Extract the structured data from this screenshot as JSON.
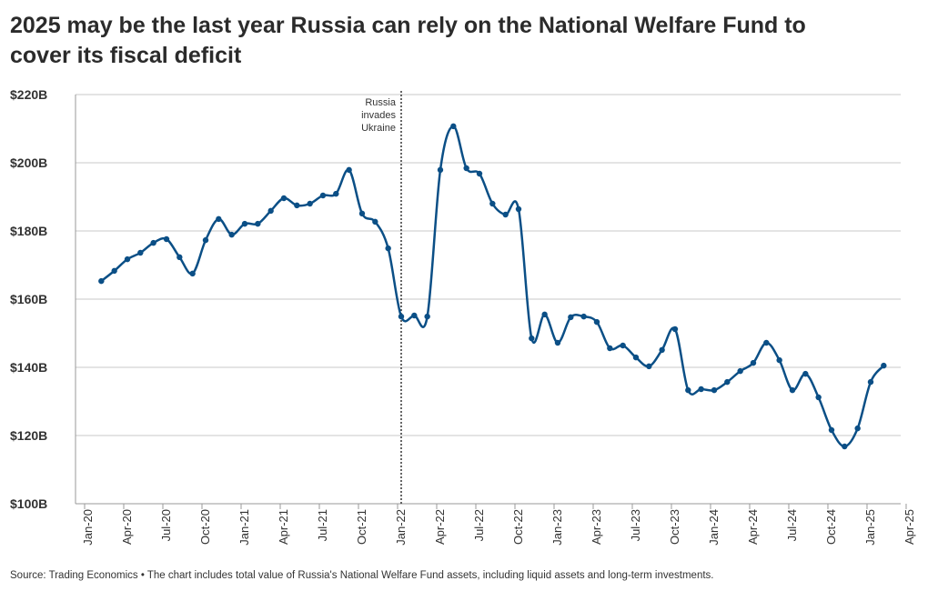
{
  "chart_data": {
    "type": "line",
    "title": [
      "2025 may be the last year Russia can rely on the National Welfare Fund to",
      "cover its fiscal deficit"
    ],
    "x": [
      "Feb-20",
      "Mar-20",
      "Apr-20",
      "May-20",
      "Jun-20",
      "Jul-20",
      "Aug-20",
      "Sep-20",
      "Oct-20",
      "Nov-20",
      "Dec-20",
      "Jan-21",
      "Feb-21",
      "Mar-21",
      "Apr-21",
      "May-21",
      "Jun-21",
      "Jul-21",
      "Aug-21",
      "Sep-21",
      "Oct-21",
      "Nov-21",
      "Dec-21",
      "Jan-22",
      "Feb-22",
      "Mar-22",
      "Apr-22",
      "May-22",
      "Jun-22",
      "Jul-22",
      "Aug-22",
      "Sep-22",
      "Oct-22",
      "Nov-22",
      "Dec-22",
      "Jan-23",
      "Feb-23",
      "Mar-23",
      "Apr-23",
      "May-23",
      "Jun-23",
      "Jul-23",
      "Aug-23",
      "Sep-23",
      "Oct-23",
      "Nov-23",
      "Dec-23",
      "Jan-24",
      "Feb-24",
      "Mar-24",
      "Apr-24",
      "May-24",
      "Jun-24",
      "Jul-24",
      "Aug-24",
      "Sep-24",
      "Oct-24",
      "Nov-24",
      "Dec-24",
      "Jan-25",
      "Feb-25"
    ],
    "series": [
      {
        "color": "#0b4f86",
        "values": [
          165.3,
          168.3,
          171.7,
          173.6,
          176.5,
          177.6,
          172.3,
          167.5,
          177.3,
          183.5,
          178.9,
          182.1,
          182.1,
          185.9,
          189.6,
          187.5,
          188,
          190.4,
          190.9,
          197.9,
          185.1,
          182.7,
          174.9,
          154.9,
          155.2,
          154.9,
          197.9,
          210.7,
          198.4,
          196.8,
          188,
          184.8,
          186.4,
          148.5,
          155.5,
          147.2,
          154.7,
          154.9,
          153.3,
          145.6,
          146.4,
          142.9,
          140.3,
          145.1,
          151.2,
          133.3,
          133.6,
          133.3,
          135.7,
          138.9,
          141.3,
          147.2,
          142.1,
          133.3,
          138.1,
          131.2,
          121.6,
          116.8,
          122.1,
          135.7,
          140.5
        ]
      }
    ],
    "ylim": [
      100,
      220
    ],
    "yticks": [
      {
        "value": 100,
        "label": "$100B"
      },
      {
        "value": 120,
        "label": "$120B"
      },
      {
        "value": 140,
        "label": "$140B"
      },
      {
        "value": 160,
        "label": "$160B"
      },
      {
        "value": 180,
        "label": "$180B"
      },
      {
        "value": 200,
        "label": "$200B"
      },
      {
        "value": 220,
        "label": "$220B"
      }
    ],
    "xticks": [
      "Jan-20",
      "Apr-20",
      "Jul-20",
      "Oct-20",
      "Jan-21",
      "Apr-21",
      "Jul-21",
      "Oct-21",
      "Jan-22",
      "Apr-22",
      "Jul-22",
      "Oct-22",
      "Jan-23",
      "Apr-23",
      "Jul-23",
      "Oct-23",
      "Jan-24",
      "Apr-24",
      "Jul-24",
      "Oct-24",
      "Jan-25",
      "Apr-25"
    ],
    "grid": true,
    "annotation": {
      "x": "Jan-22",
      "lines": [
        "Russia",
        "invades",
        "Ukraine"
      ]
    },
    "source": "Source: Trading Economics • The chart includes total value of Russia's National Welfare Fund assets, including liquid assets and long-term investments."
  }
}
